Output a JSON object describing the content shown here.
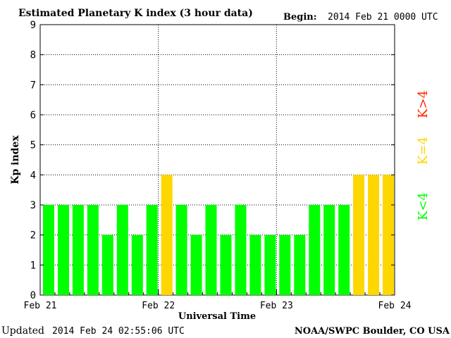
{
  "chart_data": {
    "type": "bar",
    "title": "Estimated Planetary K index (3 hour data)",
    "begin_label": "Begin:",
    "begin_value": "2014 Feb 21 0000 UTC",
    "xlabel": "Universal Time",
    "ylabel": "Kp index",
    "ylim": [
      0,
      9
    ],
    "yticks": [
      "0",
      "1",
      "2",
      "3",
      "4",
      "5",
      "6",
      "7",
      "8",
      "9"
    ],
    "x_tick_labels": [
      "Feb 21",
      "Feb 22",
      "Feb 23",
      "Feb 24"
    ],
    "values": [
      3,
      3,
      3,
      3,
      2,
      3,
      2,
      3,
      4,
      3,
      2,
      3,
      2,
      3,
      2,
      2,
      2,
      2,
      3,
      3,
      3,
      4,
      4,
      4
    ],
    "grid": "dotted",
    "legend": [
      {
        "label": "K<4",
        "color": "#00ff00"
      },
      {
        "label": "K=4",
        "color": "#ffd700"
      },
      {
        "label": "K>4",
        "color": "#ff2a00"
      }
    ]
  },
  "footer": {
    "updated_label": "Updated",
    "updated_value": "2014 Feb 24 02:55:06 UTC",
    "credit": "NOAA/SWPC Boulder, CO USA"
  },
  "colors": {
    "low": "#00ff00",
    "mid": "#ffd700",
    "high": "#ff2a00"
  }
}
